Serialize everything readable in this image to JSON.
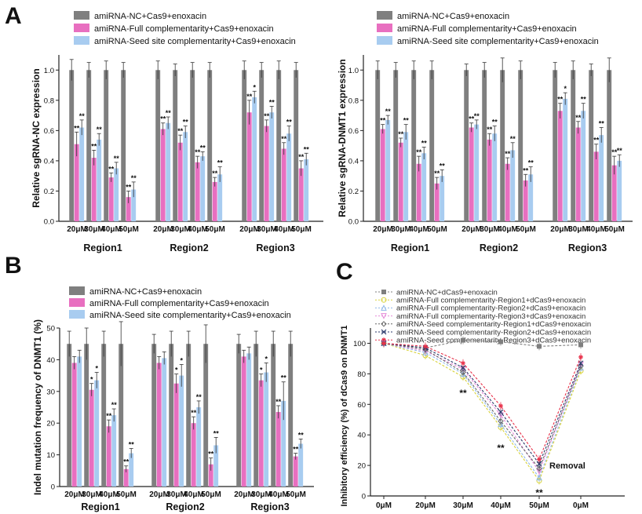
{
  "colors": {
    "nc": "#7f7f7f",
    "full": "#e86fc0",
    "seed": "#a8ccf0",
    "dnc": "#7f7f7f",
    "dfull1": "#d8d23a",
    "dfull2": "#8fb8e8",
    "dfull3": "#e58ad8",
    "dseed1": "#666666",
    "dseed2": "#2b3a6b",
    "dseed3": "#e8314a"
  },
  "panels": {
    "a_letter": "A",
    "b_letter": "B",
    "c_letter": "C"
  },
  "legend_abc": {
    "nc": "amiRNA-NC+Cas9+enoxacin",
    "full": "amiRNA-Full complementarity+Cas9+enoxacin",
    "seed": "amiRNA-Seed site complementarity+Cas9+enoxacin"
  },
  "chart_data": [
    {
      "id": "A1",
      "type": "bar",
      "title": "",
      "ylabel": "Relative sgRNA-NC expression",
      "ylim": [
        0,
        1.1
      ],
      "yticks": [
        "0.0",
        "0.2",
        "0.4",
        "0.6",
        "0.8",
        "1.0"
      ],
      "ytick_values": [
        0,
        0.2,
        0.4,
        0.6,
        0.8,
        1.0
      ],
      "categories": [
        "20μM",
        "30μM",
        "40μM",
        "50μM",
        "20μM",
        "30μM",
        "40μM",
        "50μM",
        "20μM",
        "30μM",
        "40μM",
        "50μM"
      ],
      "groups": [
        "Region1",
        "Region2",
        "Region3"
      ],
      "series": [
        {
          "name": "amiRNA-NC+Cas9+enoxacin",
          "values": [
            1,
            1,
            1,
            1,
            1,
            1,
            1,
            1,
            1,
            1,
            1,
            1
          ],
          "err": [
            0.07,
            0.05,
            0.06,
            0.05,
            0.06,
            0.04,
            0.05,
            0.05,
            0.06,
            0.05,
            0.06,
            0.05
          ]
        },
        {
          "name": "amiRNA-Full complementarity+Cas9+enoxacin",
          "values": [
            0.51,
            0.42,
            0.29,
            0.16,
            0.61,
            0.52,
            0.39,
            0.26,
            0.72,
            0.63,
            0.48,
            0.35
          ],
          "err": [
            0.08,
            0.05,
            0.03,
            0.04,
            0.04,
            0.05,
            0.04,
            0.03,
            0.08,
            0.04,
            0.04,
            0.05
          ]
        },
        {
          "name": "amiRNA-Seed site complementarity+Cas9+enoxacin",
          "values": [
            0.62,
            0.54,
            0.35,
            0.21,
            0.65,
            0.59,
            0.43,
            0.31,
            0.82,
            0.72,
            0.58,
            0.41
          ],
          "err": [
            0.05,
            0.04,
            0.04,
            0.05,
            0.04,
            0.04,
            0.03,
            0.05,
            0.04,
            0.04,
            0.05,
            0.04
          ]
        }
      ],
      "sig_full": [
        "**",
        "**",
        "**",
        "**",
        "**",
        "**",
        "**",
        "**",
        "**",
        "**",
        "**",
        "**"
      ],
      "sig_seed": [
        "**",
        "**",
        "**",
        "**",
        "**",
        "**",
        "**",
        "**",
        "*",
        "**",
        "**",
        "**"
      ]
    },
    {
      "id": "A2",
      "type": "bar",
      "title": "",
      "ylabel": "Relative sgRNA-DNMT1 expression",
      "ylim": [
        0,
        1.1
      ],
      "yticks": [
        "0.0",
        "0.2",
        "0.4",
        "0.6",
        "0.8",
        "1.0"
      ],
      "ytick_values": [
        0,
        0.2,
        0.4,
        0.6,
        0.8,
        1.0
      ],
      "categories": [
        "20μM",
        "30μM",
        "40μM",
        "50μM",
        "20μM",
        "30μM",
        "40μM",
        "50μM",
        "20μM",
        "30μM",
        "40μM",
        "50μM"
      ],
      "groups": [
        "Region1",
        "Region2",
        "Region3"
      ],
      "series": [
        {
          "name": "amiRNA-NC+Cas9+enoxacin",
          "values": [
            1,
            1,
            1,
            1,
            1,
            1,
            1,
            1,
            1,
            1,
            1,
            1
          ],
          "err": [
            0.06,
            0.05,
            0.06,
            0.06,
            0.04,
            0.05,
            0.08,
            0.06,
            0.05,
            0.06,
            0.04,
            0.08
          ]
        },
        {
          "name": "amiRNA-Full complementarity+Cas9+enoxacin",
          "values": [
            0.61,
            0.52,
            0.38,
            0.25,
            0.62,
            0.54,
            0.38,
            0.27,
            0.73,
            0.62,
            0.46,
            0.37
          ],
          "err": [
            0.03,
            0.03,
            0.05,
            0.04,
            0.03,
            0.04,
            0.04,
            0.04,
            0.05,
            0.04,
            0.05,
            0.06
          ]
        },
        {
          "name": "amiRNA-Seed site complementarity+Cas9+enoxacin",
          "values": [
            0.67,
            0.59,
            0.45,
            0.3,
            0.64,
            0.58,
            0.47,
            0.31,
            0.81,
            0.73,
            0.57,
            0.4
          ],
          "err": [
            0.03,
            0.05,
            0.04,
            0.04,
            0.03,
            0.05,
            0.05,
            0.05,
            0.04,
            0.05,
            0.05,
            0.04
          ]
        }
      ],
      "sig_full": [
        "**",
        "**",
        "**",
        "**",
        "**",
        "**",
        "**",
        "**",
        "**",
        "**",
        "**",
        "**"
      ],
      "sig_seed": [
        "**",
        "**",
        "**",
        "**",
        "**",
        "**",
        "**",
        "**",
        "*",
        "**",
        "**",
        "**"
      ]
    },
    {
      "id": "B",
      "type": "bar",
      "title": "",
      "ylabel": "Indel mutation frequency of DNMT1 (%)",
      "ylim": [
        0,
        50
      ],
      "yticks": [
        "0",
        "10",
        "20",
        "30",
        "40",
        "50"
      ],
      "ytick_values": [
        0,
        10,
        20,
        30,
        40,
        50
      ],
      "categories": [
        "20μM",
        "30μM",
        "40μM",
        "50μM",
        "20μM",
        "30μM",
        "40μM",
        "50μM",
        "20μM",
        "30μM",
        "40μM",
        "50μM"
      ],
      "groups": [
        "Region1",
        "Region2",
        "Region3"
      ],
      "series": [
        {
          "name": "amiRNA-NC+Cas9+enoxacin",
          "values": [
            45,
            45,
            45,
            45,
            45,
            45,
            45,
            45,
            45,
            45,
            45,
            45
          ],
          "err": [
            4,
            5,
            4,
            7,
            3,
            4,
            4,
            6,
            3,
            4,
            4,
            4
          ]
        },
        {
          "name": "amiRNA-Full complementarity+Cas9+enoxacin",
          "values": [
            39,
            30.5,
            19,
            5.5,
            39,
            32.5,
            20,
            7,
            41,
            33.5,
            23.5,
            9.5
          ],
          "err": [
            2,
            2,
            2,
            1,
            2,
            3,
            2,
            2,
            2,
            2,
            2,
            1
          ]
        },
        {
          "name": "amiRNA-Seed site complementarity+Cas9+enoxacin",
          "values": [
            41,
            33.5,
            22.5,
            10.5,
            40.5,
            35,
            25,
            13,
            42,
            36,
            27,
            13.5
          ],
          "err": [
            2,
            2.5,
            2,
            1.5,
            2,
            3.5,
            2,
            2.5,
            2,
            3,
            6,
            1.5
          ]
        }
      ],
      "sig_full": [
        "",
        "*",
        "**",
        "**",
        "",
        "*",
        "**",
        "**",
        "",
        "*",
        "**",
        "**"
      ],
      "sig_seed": [
        "",
        "*",
        "**",
        "**",
        "",
        "*",
        "**",
        "**",
        "",
        "*",
        "**",
        "**"
      ]
    },
    {
      "id": "C",
      "type": "line",
      "title": "",
      "xlabel": "",
      "ylabel": "Inhibitory efficiency (%) of dCas9 on DNMT1",
      "ylim": [
        0,
        110
      ],
      "yticks": [
        "0",
        "20",
        "40",
        "60",
        "80",
        "100"
      ],
      "ytick_values": [
        0,
        20,
        40,
        60,
        80,
        100
      ],
      "x": [
        "0μM",
        "20μM",
        "30μM",
        "40μM",
        "50μM",
        "0μM"
      ],
      "annotations": {
        "sig_30": "**",
        "sig_40": "**",
        "sig_50": "**",
        "removal": "Removal"
      },
      "series": [
        {
          "name": "amiRNA-NC+dCas9+enoxacin",
          "color_key": "dnc",
          "marker": "square",
          "values": [
            100,
            97,
            102,
            101,
            98,
            99
          ]
        },
        {
          "name": "amiRNA-Full complementarity-Region1+dCas9+enoxacin",
          "color_key": "dfull1",
          "marker": "circle",
          "values": [
            100,
            92,
            78,
            45,
            10,
            82
          ]
        },
        {
          "name": "amiRNA-Full complementarity-Region2+dCas9+enoxacin",
          "color_key": "dfull2",
          "marker": "triangle",
          "values": [
            100,
            94,
            80,
            47,
            12,
            84
          ]
        },
        {
          "name": "amiRNA-Full complementarity-Region3+dCas9+enoxacin",
          "color_key": "dfull3",
          "marker": "triangle-down",
          "values": [
            100,
            95,
            83,
            53,
            16,
            86
          ]
        },
        {
          "name": "amiRNA-Seed complementarity-Region1+dCas9+enoxacin",
          "color_key": "dseed1",
          "marker": "diamond",
          "values": [
            100,
            96,
            81,
            49,
            18,
            85
          ]
        },
        {
          "name": "amiRNA-Seed complementarity-Region2+dCas9+enoxacin",
          "color_key": "dseed2",
          "marker": "x",
          "values": [
            100,
            97,
            84,
            55,
            21,
            87
          ]
        },
        {
          "name": "amiRNA-Seed complementarity-Region3+dCas9+enoxacin",
          "color_key": "dseed3",
          "marker": "star",
          "values": [
            100,
            98,
            87,
            59,
            24,
            91
          ]
        }
      ]
    }
  ]
}
